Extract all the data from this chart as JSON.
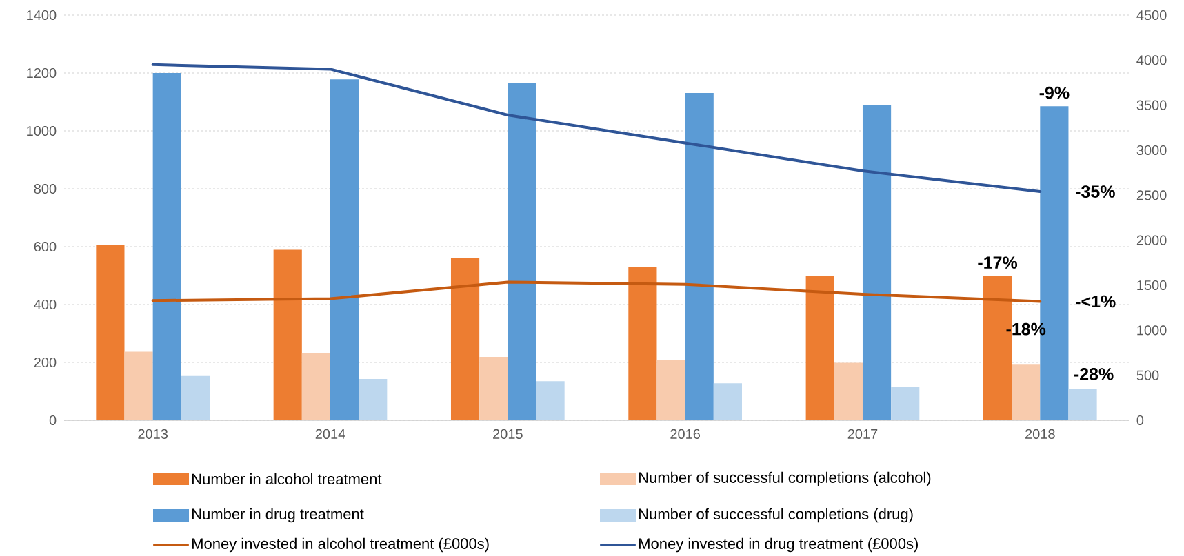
{
  "chart_data": {
    "type": "bar",
    "categories": [
      "2013",
      "2014",
      "2015",
      "2016",
      "2017",
      "2018"
    ],
    "series": [
      {
        "name": "Number in alcohol treatment",
        "color": "#ed7d31",
        "values": [
          606,
          589,
          562,
          530,
          499,
          498
        ]
      },
      {
        "name": "Number of successful completions (alcohol)",
        "color": "#f8cbad",
        "values": [
          237,
          232,
          219,
          208,
          199,
          192
        ]
      },
      {
        "name": "Number in drug treatment",
        "color": "#5b9bd5",
        "values": [
          1200,
          1178,
          1164,
          1131,
          1090,
          1085
        ]
      },
      {
        "name": "Number of successful completions (drug)",
        "color": "#bdd7ee",
        "values": [
          153,
          143,
          135,
          128,
          116,
          108
        ]
      },
      {
        "name": "Money invested in alcohol  treatment (£000s)",
        "color": "#c55a11",
        "type": "line",
        "axis": "y2",
        "values": [
          1330,
          1350,
          1535,
          1510,
          1400,
          1320
        ]
      },
      {
        "name": "Money invested in drug treatment (£000s)",
        "color": "#2f5597",
        "type": "line",
        "axis": "y2",
        "values": [
          3950,
          3900,
          3390,
          3080,
          2770,
          2540
        ]
      }
    ],
    "ylim": [
      0,
      1400
    ],
    "yticks": [
      0,
      200,
      400,
      600,
      800,
      1000,
      1200,
      1400
    ],
    "y2lim": [
      0,
      4500
    ],
    "y2ticks": [
      0,
      500,
      1000,
      1500,
      2000,
      2500,
      3000,
      3500,
      4000,
      4500
    ],
    "annotations": [
      {
        "text": "-9%",
        "x": "2018",
        "y": 1085
      },
      {
        "text": "-17%",
        "x": "2018",
        "y": 498
      },
      {
        "text": "-18%",
        "x": "2018",
        "y": 192
      },
      {
        "text": "-28%",
        "x": "2018",
        "y": 108
      },
      "-35%",
      "-<1%"
    ],
    "grid": "y",
    "legend": "bottom"
  }
}
